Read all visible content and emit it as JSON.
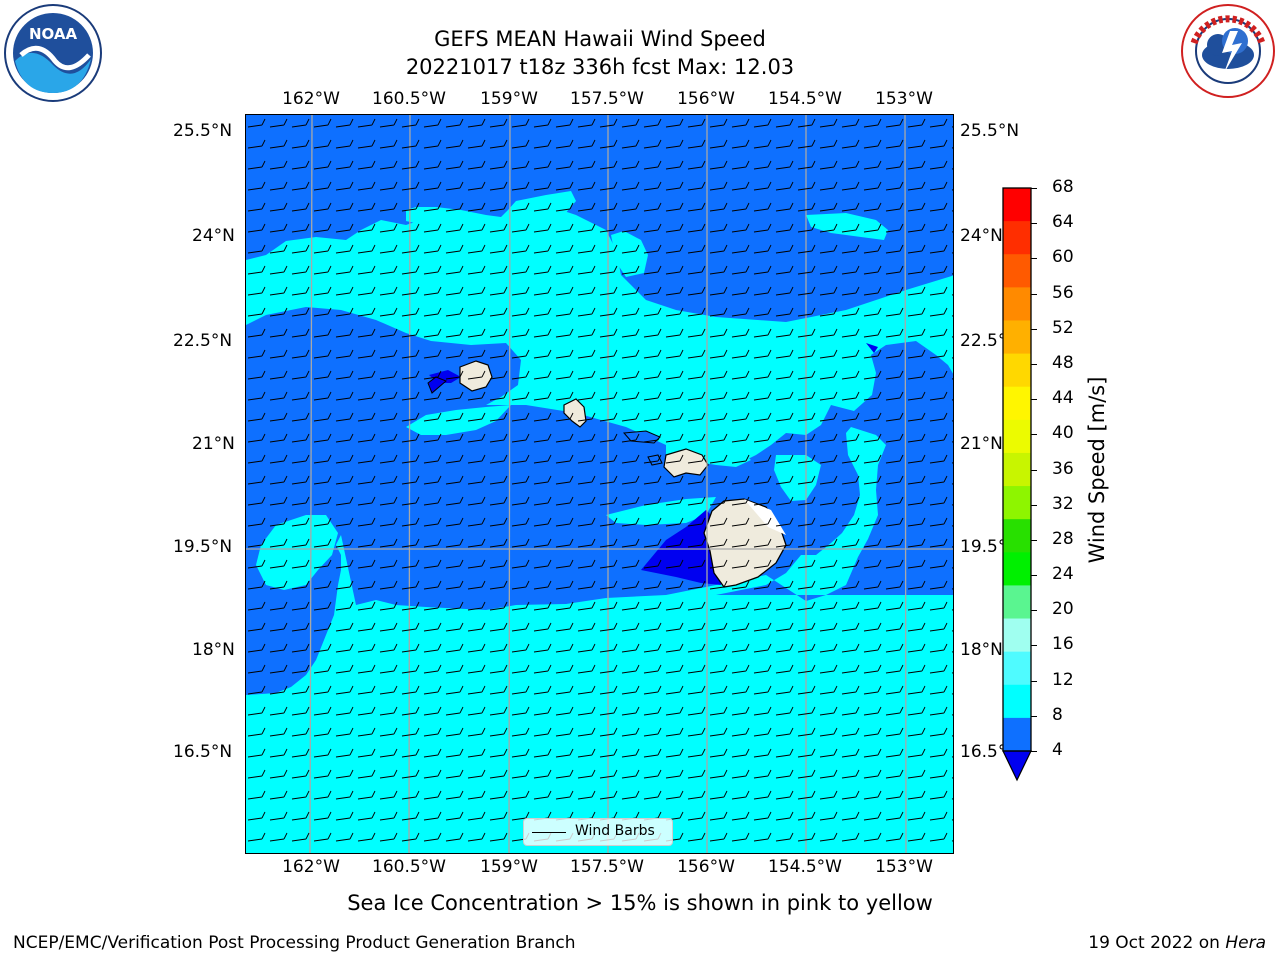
{
  "header": {
    "title_line1": "GEFS MEAN Hawaii Wind Speed",
    "title_line2": "20221017 t18z 336h fcst   Max: 12.03"
  },
  "map": {
    "lon_labels": [
      "162°W",
      "160.5°W",
      "159°W",
      "157.5°W",
      "156°W",
      "154.5°W",
      "153°W"
    ],
    "lat_labels": [
      "25.5°N",
      "24°N",
      "22.5°N",
      "21°N",
      "19.5°N",
      "18°N",
      "16.5°N"
    ],
    "legend_label": "Wind Barbs",
    "colors": {
      "speed_4_8": "#0e70ff",
      "speed_8_12": "#00ffff",
      "below_4": "#0000f0",
      "land": "#efebdd",
      "grid": "#a8a8a8"
    }
  },
  "colorbar": {
    "label": "Wind Speed [m/s]",
    "ticks": [
      "68",
      "64",
      "60",
      "56",
      "52",
      "48",
      "44",
      "40",
      "36",
      "32",
      "28",
      "24",
      "20",
      "16",
      "12",
      "8",
      "4"
    ],
    "colors": [
      "#ff0000",
      "#ff2e00",
      "#ff5a00",
      "#ff8a00",
      "#ffb000",
      "#ffd800",
      "#fff600",
      "#ecfb00",
      "#c8f500",
      "#8ef500",
      "#28e000",
      "#00f000",
      "#5af590",
      "#a0fff0",
      "#4ffbff",
      "#00ffff",
      "#0e70ff"
    ],
    "extend_below_color": "#0000f0"
  },
  "note": "Sea Ice Concentration > 15% is shown in pink to yellow",
  "footer": {
    "left": "NCEP/EMC/Verification Post Processing Product Generation Branch",
    "right_date": "19 Oct 2022 on ",
    "right_machine": "Hera"
  }
}
